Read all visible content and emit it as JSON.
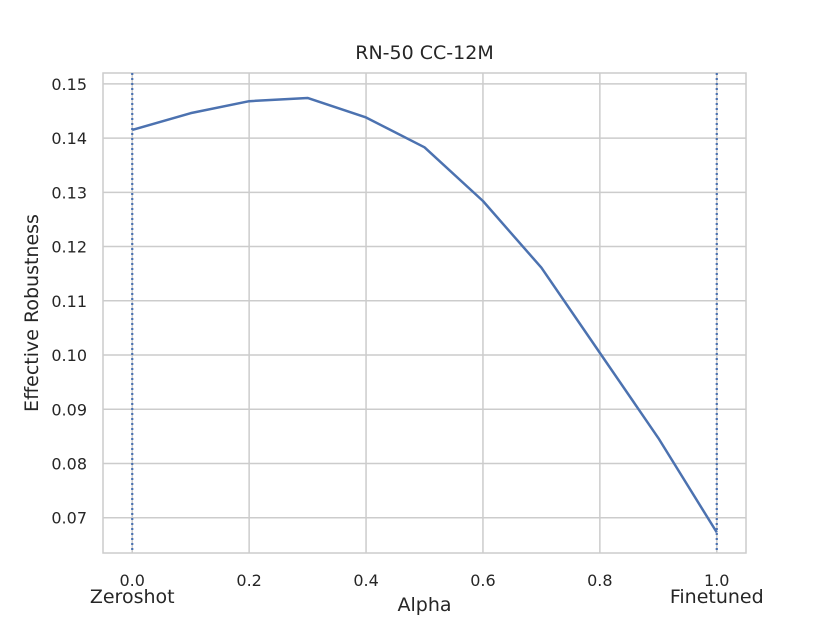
{
  "chart_data": {
    "type": "line",
    "title": "RN-50 CC-12M",
    "xlabel": "Alpha",
    "ylabel": "Effective Robustness",
    "xlim": [
      -0.05,
      1.05
    ],
    "ylim": [
      0.0635,
      0.152
    ],
    "grid": true,
    "x_ticks": [
      0.0,
      0.2,
      0.4,
      0.6,
      0.8,
      1.0
    ],
    "x_tick_labels": [
      "0.0",
      "0.2",
      "0.4",
      "0.6",
      "0.8",
      "1.0"
    ],
    "y_ticks": [
      0.07,
      0.08,
      0.09,
      0.1,
      0.11,
      0.12,
      0.13,
      0.14,
      0.15
    ],
    "y_tick_labels": [
      "0.07",
      "0.08",
      "0.09",
      "0.10",
      "0.11",
      "0.12",
      "0.13",
      "0.14",
      "0.15"
    ],
    "series": [
      {
        "x": [
          0.0,
          0.1,
          0.2,
          0.3,
          0.4,
          0.5,
          0.6,
          0.7,
          0.8,
          0.9,
          1.0
        ],
        "values": [
          0.1415,
          0.1446,
          0.1468,
          0.1474,
          0.1438,
          0.1383,
          0.1284,
          0.1161,
          0.1004,
          0.0847,
          0.0673
        ],
        "color": "#4c72b0"
      }
    ],
    "vertical_lines": [
      {
        "x": 0.0,
        "style": "dotted",
        "color": "#4c72b0",
        "label": "Zeroshot"
      },
      {
        "x": 1.0,
        "style": "dotted",
        "color": "#4c72b0",
        "label": "Finetuned"
      }
    ]
  }
}
